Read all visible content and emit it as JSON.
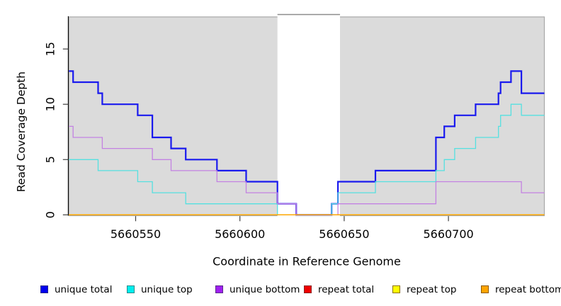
{
  "figure": {
    "background": "#FFFFFF"
  },
  "chart_data": {
    "type": "line",
    "subtype": "step",
    "title": "",
    "xlabel": "Coordinate in Reference Genome",
    "ylabel": "Read Coverage Depth",
    "x_range": [
      5660518,
      5660746
    ],
    "y_range": [
      0,
      17.9
    ],
    "x_ticks": [
      5660550,
      5660600,
      5660650,
      5660700
    ],
    "y_ticks": [
      0,
      5,
      10,
      15
    ],
    "grid": false,
    "panel_bg": "#DBDBDB",
    "panel_border": "#A8A8A8",
    "axis_color": "#000000",
    "tick_color": "#404040",
    "masked_region": {
      "start": 5660618,
      "end": 5660648,
      "fill": "#FFFFFF",
      "top_border": "#8C8C8C"
    },
    "series": [
      {
        "name": "unique total",
        "color": "#1A1AEE",
        "line_width": 2.2,
        "points": [
          [
            5660518,
            13
          ],
          [
            5660520,
            12
          ],
          [
            5660532,
            11
          ],
          [
            5660534,
            10
          ],
          [
            5660551,
            9
          ],
          [
            5660558,
            7
          ],
          [
            5660567,
            6
          ],
          [
            5660574,
            5
          ],
          [
            5660589,
            4
          ],
          [
            5660603,
            3
          ],
          [
            5660618,
            1
          ],
          [
            5660627,
            0
          ],
          [
            5660644,
            1
          ],
          [
            5660647,
            3
          ],
          [
            5660665,
            4
          ],
          [
            5660694,
            7
          ],
          [
            5660698,
            8
          ],
          [
            5660703,
            9
          ],
          [
            5660713,
            10
          ],
          [
            5660724,
            11
          ],
          [
            5660725,
            12
          ],
          [
            5660730,
            13
          ],
          [
            5660735,
            11
          ],
          [
            5660746,
            11
          ]
        ]
      },
      {
        "name": "unique top",
        "color": "#55E0E0",
        "line_width": 1.3,
        "points": [
          [
            5660518,
            5
          ],
          [
            5660532,
            4
          ],
          [
            5660551,
            3
          ],
          [
            5660558,
            2
          ],
          [
            5660574,
            1
          ],
          [
            5660618,
            0
          ],
          [
            5660644,
            1
          ],
          [
            5660647,
            2
          ],
          [
            5660665,
            3
          ],
          [
            5660694,
            4
          ],
          [
            5660698,
            5
          ],
          [
            5660703,
            6
          ],
          [
            5660713,
            7
          ],
          [
            5660724,
            8
          ],
          [
            5660725,
            9
          ],
          [
            5660730,
            10
          ],
          [
            5660735,
            9
          ],
          [
            5660746,
            9
          ]
        ]
      },
      {
        "name": "unique bottom",
        "color": "#C382E2",
        "line_width": 1.3,
        "points": [
          [
            5660518,
            8
          ],
          [
            5660520,
            7
          ],
          [
            5660534,
            6
          ],
          [
            5660558,
            5
          ],
          [
            5660567,
            4
          ],
          [
            5660589,
            3
          ],
          [
            5660603,
            2
          ],
          [
            5660618,
            1
          ],
          [
            5660627,
            0
          ],
          [
            5660647,
            1
          ],
          [
            5660694,
            3
          ],
          [
            5660735,
            2
          ],
          [
            5660746,
            2
          ]
        ]
      },
      {
        "name": "repeat total",
        "color": "#DD1111",
        "line_width": 1.3,
        "points": [
          [
            5660518,
            0
          ],
          [
            5660746,
            0
          ]
        ]
      },
      {
        "name": "repeat top",
        "color": "#EEEE00",
        "line_width": 1.3,
        "points": [
          [
            5660518,
            0
          ],
          [
            5660746,
            0
          ]
        ]
      },
      {
        "name": "repeat bottom",
        "color": "#FFA500",
        "line_width": 1.3,
        "points": [
          [
            5660518,
            0
          ],
          [
            5660746,
            0
          ]
        ]
      }
    ],
    "legend": [
      {
        "label": "unique total",
        "fill": "#0000EE",
        "border": "#26268C"
      },
      {
        "label": "unique top",
        "fill": "#00EEEE",
        "border": "#2A8C8C"
      },
      {
        "label": "unique bottom",
        "fill": "#A020F0",
        "border": "#5A2A8C"
      },
      {
        "label": "repeat total",
        "fill": "#EE0000",
        "border": "#8C2020"
      },
      {
        "label": "repeat top",
        "fill": "#FFFF00",
        "border": "#8C7000"
      },
      {
        "label": "repeat bottom",
        "fill": "#FFA500",
        "border": "#8C5A00"
      }
    ],
    "legend_position": "bottom"
  }
}
